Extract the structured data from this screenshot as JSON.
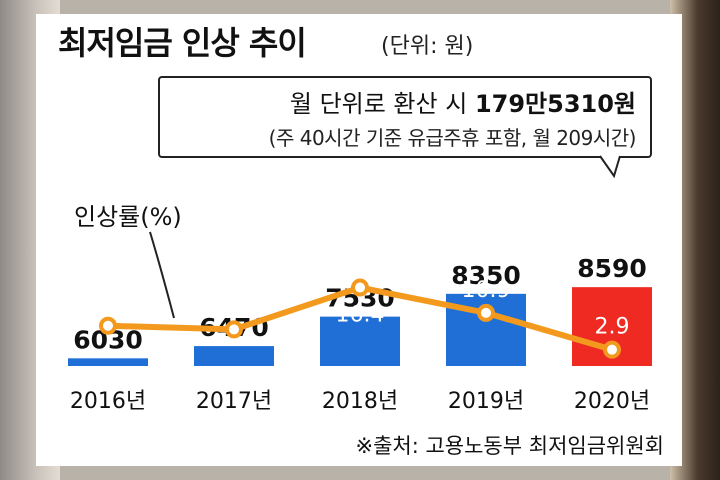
{
  "header": {
    "title": "최저임금 인상 추이",
    "unit": "(단위: 원)"
  },
  "callout": {
    "line1_prefix": "월 단위로 환산 시 ",
    "line1_value": "179만5310원",
    "line2": "(주 40시간 기준 유급주휴 포함, 월 209시간)"
  },
  "source": "※출처: 고용노동부 최저임금위원회",
  "colors": {
    "bar": "#1f6fd6",
    "highlight_bar": "#ee2a22",
    "line": "#f39a1e"
  },
  "chart_data": {
    "type": "bar",
    "categories": [
      "2016년",
      "2017년",
      "2018년",
      "2019년",
      "2020년"
    ],
    "series": [
      {
        "name": "",
        "values": [
          6030,
          6470,
          7530,
          8350,
          8590
        ]
      },
      {
        "name": "인상률(%)",
        "type": "line",
        "values": [
          8.1,
          7.3,
          16.4,
          10.9,
          2.9
        ]
      }
    ],
    "legend": "인상률(%)",
    "highlight_category": "2020년",
    "grid": false
  }
}
